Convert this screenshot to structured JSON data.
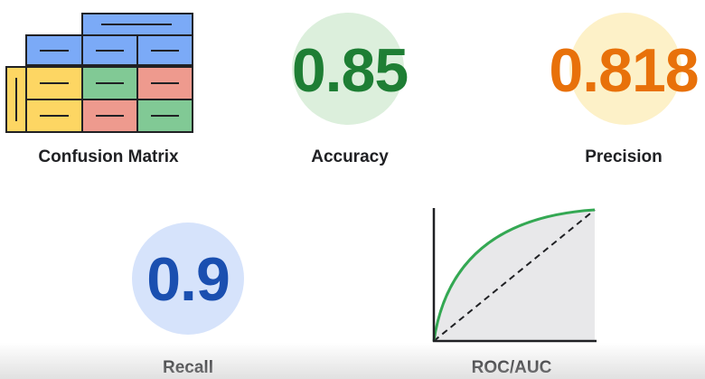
{
  "labels": {
    "confusion_matrix": "Confusion Matrix",
    "accuracy": "Accuracy",
    "precision": "Precision",
    "recall": "Recall",
    "roc_auc": "ROC/AUC"
  },
  "metrics": {
    "accuracy": "0.85",
    "precision": "0.818",
    "recall": "0.9"
  },
  "colors": {
    "accuracy_text": "#1e7e34",
    "accuracy_circle": "#dcefdc",
    "precision_text": "#e8710a",
    "precision_circle": "#fdf1c8",
    "recall_text": "#1a4fb0",
    "recall_circle": "#d6e3fb",
    "matrix_blue": "#7baaf7",
    "matrix_yellow": "#fdd663",
    "matrix_green": "#81c995",
    "matrix_red": "#ee9a8e",
    "roc_curve": "#34a853",
    "roc_fill": "#e8e8ea"
  },
  "icons": {
    "matrix": "confusion-matrix-icon",
    "roc": "roc-curve-icon"
  }
}
